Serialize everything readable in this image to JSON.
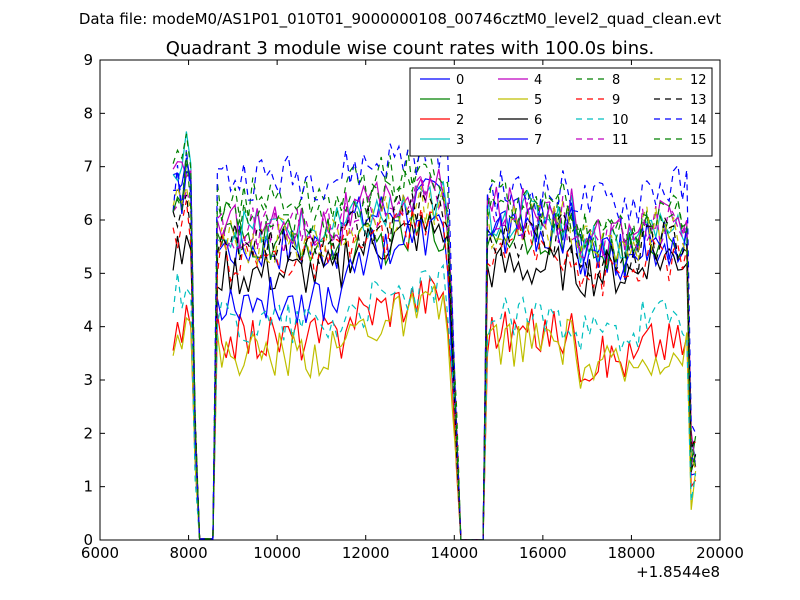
{
  "header": {
    "data_file": "Data file: modeM0/AS1P01_010T01_9000000108_00746cztM0_level2_quad_clean.evt"
  },
  "chart_data": {
    "type": "line",
    "title": "Quadrant 3 module wise count rates with 100.0s bins.",
    "xlabel": "",
    "ylabel": "",
    "xlim": [
      6000,
      20000
    ],
    "ylim": [
      0,
      9
    ],
    "x_ticks": [
      "6000",
      "8000",
      "10000",
      "12000",
      "14000",
      "16000",
      "18000",
      "20000"
    ],
    "y_ticks": [
      "0",
      "1",
      "2",
      "3",
      "4",
      "5",
      "6",
      "7",
      "8",
      "9"
    ],
    "x_offset_label": "+1.8544e8",
    "grid": false,
    "legend": {
      "placement": "top-right",
      "columns": 4
    },
    "gaps": [
      [
        8200,
        8600
      ],
      [
        14150,
        14650
      ]
    ],
    "series": [
      {
        "name": "0",
        "color": "#0000ff",
        "dash": "solid",
        "levels": {
          "seg1": 6.5,
          "seg2": 5.5,
          "seg3": 6.0,
          "seg4": 6.0,
          "seg5": 5.3
        }
      },
      {
        "name": "1",
        "color": "#008000",
        "dash": "solid",
        "levels": {
          "seg1": 6.5,
          "seg2": 5.6,
          "seg3": 5.4,
          "seg4": 5.8,
          "seg5": 5.4
        }
      },
      {
        "name": "2",
        "color": "#ff0000",
        "dash": "solid",
        "levels": {
          "seg1": 3.7,
          "seg2": 3.8,
          "seg3": 4.2,
          "seg4": 3.9,
          "seg5": 3.4
        }
      },
      {
        "name": "3",
        "color": "#00bfbf",
        "dash": "solid",
        "levels": {
          "seg1": 6.8,
          "seg2": 5.8,
          "seg3": 5.9,
          "seg4": 6.1,
          "seg5": 5.6
        }
      },
      {
        "name": "4",
        "color": "#bf00bf",
        "dash": "solid",
        "levels": {
          "seg1": 6.7,
          "seg2": 5.9,
          "seg3": 6.1,
          "seg4": 6.2,
          "seg5": 5.7
        }
      },
      {
        "name": "5",
        "color": "#bfbf00",
        "dash": "solid",
        "levels": {
          "seg1": 3.9,
          "seg2": 3.5,
          "seg3": 3.9,
          "seg4": 3.7,
          "seg5": 3.2
        }
      },
      {
        "name": "6",
        "color": "#000000",
        "dash": "solid",
        "levels": {
          "seg1": 5.3,
          "seg2": 5.0,
          "seg3": 5.4,
          "seg4": 5.1,
          "seg5": 5.0
        }
      },
      {
        "name": "7",
        "color": "#0000ff",
        "dash": "solid",
        "levels": {
          "seg1": 6.6,
          "seg2": 4.5,
          "seg3": 5.3,
          "seg4": 5.8,
          "seg5": 5.3
        }
      },
      {
        "name": "8",
        "color": "#008000",
        "dash": "dashed",
        "levels": {
          "seg1": 6.9,
          "seg2": 6.4,
          "seg3": 6.6,
          "seg4": 6.2,
          "seg5": 5.7
        }
      },
      {
        "name": "9",
        "color": "#ff0000",
        "dash": "dashed",
        "levels": {
          "seg1": 5.5,
          "seg2": 5.3,
          "seg3": 5.5,
          "seg4": 5.5,
          "seg5": 5.0
        }
      },
      {
        "name": "10",
        "color": "#00bfbf",
        "dash": "dashed",
        "levels": {
          "seg1": 4.6,
          "seg2": 4.1,
          "seg3": 4.3,
          "seg4": 4.2,
          "seg5": 3.8
        }
      },
      {
        "name": "11",
        "color": "#bf00bf",
        "dash": "dashed",
        "levels": {
          "seg1": 6.3,
          "seg2": 5.8,
          "seg3": 6.1,
          "seg4": 6.0,
          "seg5": 5.6
        }
      },
      {
        "name": "12",
        "color": "#bfbf00",
        "dash": "dashed",
        "levels": {
          "seg1": 6.2,
          "seg2": 5.6,
          "seg3": 5.9,
          "seg4": 5.9,
          "seg5": 5.5
        }
      },
      {
        "name": "13",
        "color": "#000000",
        "dash": "dashed",
        "levels": {
          "seg1": 5.9,
          "seg2": 5.5,
          "seg3": 5.8,
          "seg4": 5.7,
          "seg5": 5.3
        }
      },
      {
        "name": "14",
        "color": "#0000ff",
        "dash": "dashed",
        "levels": {
          "seg1": 6.6,
          "seg2": 6.8,
          "seg3": 6.9,
          "seg4": 6.5,
          "seg5": 6.3
        }
      },
      {
        "name": "15",
        "color": "#008000",
        "dash": "dashed",
        "levels": {
          "seg1": 6.4,
          "seg2": 5.9,
          "seg3": 6.3,
          "seg4": 6.3,
          "seg5": 5.8
        }
      }
    ]
  }
}
